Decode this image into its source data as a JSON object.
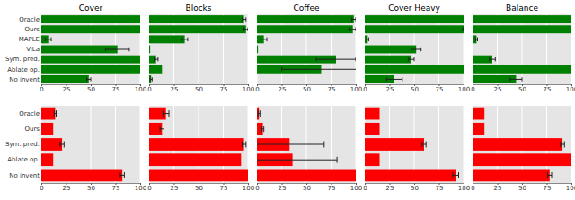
{
  "chart_data": [
    {
      "type": "bar",
      "orientation": "horizontal",
      "title": "Cover",
      "categories": [
        "Oracle",
        "Ours",
        "MAPLE",
        "ViLa",
        "Sym. pred.",
        "Ablate op.",
        "No invent"
      ],
      "values": [
        100,
        100,
        7,
        77,
        100,
        100,
        48
      ],
      "errors": [
        0,
        0,
        3,
        12,
        0,
        0,
        2
      ],
      "color": "#008000",
      "xlim": [
        0,
        100
      ],
      "xticks": [
        0,
        25,
        50,
        75,
        100
      ],
      "grid": true
    },
    {
      "type": "bar",
      "orientation": "horizontal",
      "title": "Blocks",
      "categories": [
        "Oracle",
        "Ours",
        "MAPLE",
        "ViLa",
        "Sym. pred.",
        "Ablate op.",
        "No invent"
      ],
      "values": [
        96,
        98,
        36,
        1,
        7,
        13,
        2
      ],
      "errors": [
        2,
        2,
        3,
        0,
        2,
        0,
        1
      ],
      "color": "#008000",
      "xlim": [
        0,
        100
      ],
      "xticks": [
        0,
        25,
        50,
        75,
        100
      ],
      "grid": true,
      "tick_labels": "x"
    },
    {
      "type": "bar",
      "orientation": "horizontal",
      "title": "Coffee",
      "categories": [
        "Oracle",
        "Ours",
        "MAPLE",
        "ViLa",
        "Sym. pred.",
        "Ablate op.",
        "No invent"
      ],
      "values": [
        98,
        97,
        7,
        1,
        80,
        65,
        0
      ],
      "errors": [
        2,
        3,
        3,
        0,
        20,
        40,
        0
      ],
      "color": "#008000",
      "xlim": [
        0,
        100
      ],
      "xticks": [
        0,
        25,
        50,
        75,
        100
      ],
      "grid": true,
      "tick_labels": "x"
    },
    {
      "type": "bar",
      "orientation": "horizontal",
      "title": "Cover Heavy",
      "categories": [
        "Oracle",
        "Ours",
        "MAPLE",
        "ViLa",
        "Sym. pred.",
        "Ablate op.",
        "No invent"
      ],
      "values": [
        100,
        100,
        3,
        52,
        47,
        100,
        30
      ],
      "errors": [
        0,
        1,
        1,
        5,
        3,
        0,
        8
      ],
      "color": "#008000",
      "xlim": [
        0,
        100
      ],
      "xticks": [
        0,
        25,
        50,
        75,
        100
      ],
      "grid": true,
      "tick_labels": "x"
    },
    {
      "type": "bar",
      "orientation": "horizontal",
      "title": "Balance",
      "categories": [
        "Oracle",
        "Ours",
        "MAPLE",
        "ViLa",
        "Sym. pred.",
        "Ablate op.",
        "No invent"
      ],
      "values": [
        100,
        100,
        4,
        0,
        20,
        100,
        44
      ],
      "errors": [
        0,
        0,
        1,
        0,
        3,
        0,
        6
      ],
      "color": "#008000",
      "xlim": [
        0,
        100
      ],
      "xticks": [
        0,
        25,
        50,
        75,
        100
      ],
      "grid": true,
      "tick_labels": "x"
    },
    {
      "type": "bar",
      "orientation": "horizontal",
      "categories": [
        "Oracle",
        "Ours",
        "Sym. pred.",
        "Ablate op.",
        "No invent"
      ],
      "values": [
        14,
        12,
        21,
        12,
        82
      ],
      "errors": [
        1,
        0,
        2,
        0,
        2
      ],
      "color": "#ff0000",
      "xlim": [
        0,
        100
      ],
      "xticks": [
        0,
        25,
        50,
        75,
        100
      ],
      "grid": true
    },
    {
      "type": "bar",
      "orientation": "horizontal",
      "categories": [
        "Oracle",
        "Ours",
        "Sym. pred.",
        "Ablate op.",
        "No invent"
      ],
      "values": [
        17,
        13,
        96,
        93,
        100
      ],
      "errors": [
        3,
        2,
        2,
        0,
        0
      ],
      "color": "#ff0000",
      "xlim": [
        0,
        100
      ],
      "xticks": [
        0,
        25,
        50,
        75,
        100
      ],
      "grid": true,
      "tick_labels": "x"
    },
    {
      "type": "bar",
      "orientation": "horizontal",
      "categories": [
        "Oracle",
        "Ours",
        "Sym. pred.",
        "Ablate op.",
        "No invent"
      ],
      "values": [
        2,
        6,
        33,
        36,
        100
      ],
      "errors": [
        1,
        1,
        35,
        45,
        0
      ],
      "color": "#ff0000",
      "xlim": [
        0,
        100
      ],
      "xticks": [
        0,
        25,
        50,
        75,
        100
      ],
      "grid": true,
      "tick_labels": "x"
    },
    {
      "type": "bar",
      "orientation": "horizontal",
      "categories": [
        "Oracle",
        "Ours",
        "Sym. pred.",
        "Ablate op.",
        "No invent"
      ],
      "values": [
        15,
        15,
        60,
        15,
        92
      ],
      "errors": [
        0,
        0,
        2,
        0,
        3
      ],
      "color": "#ff0000",
      "xlim": [
        0,
        100
      ],
      "xticks": [
        0,
        25,
        50,
        75,
        100
      ],
      "grid": true,
      "tick_labels": "x"
    },
    {
      "type": "bar",
      "orientation": "horizontal",
      "categories": [
        "Oracle",
        "Ours",
        "Sym. pred.",
        "Ablate op.",
        "No invent"
      ],
      "values": [
        12,
        12,
        91,
        100,
        78
      ],
      "errors": [
        0,
        0,
        2,
        0,
        2
      ],
      "color": "#ff0000",
      "xlim": [
        0,
        100
      ],
      "xticks": [
        0,
        25,
        50,
        75,
        100
      ],
      "grid": true,
      "tick_labels": "x"
    }
  ]
}
